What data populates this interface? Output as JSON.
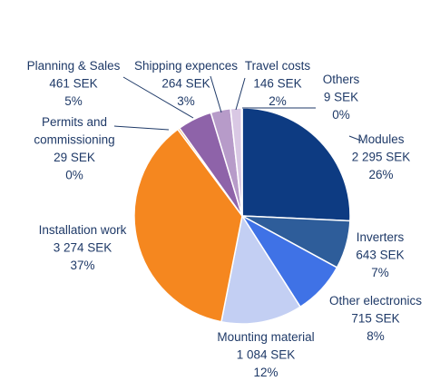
{
  "chart_data": {
    "type": "pie",
    "currency": "SEK",
    "slices": [
      {
        "name": "Modules",
        "value": 2295,
        "value_label": "2 295 SEK",
        "percent_label": "26%",
        "color": "#0d3b82"
      },
      {
        "name": "Inverters",
        "value": 643,
        "value_label": "643 SEK",
        "percent_label": "7%",
        "color": "#2e5d9a"
      },
      {
        "name": "Other electronics",
        "value": 715,
        "value_label": "715 SEK",
        "percent_label": "8%",
        "color": "#3f72e6"
      },
      {
        "name": "Mounting material",
        "value": 1084,
        "value_label": "1 084 SEK",
        "percent_label": "12%",
        "color": "#c3cff3"
      },
      {
        "name": "Installation work",
        "value": 3274,
        "value_label": "3 274 SEK",
        "percent_label": "37%",
        "color": "#f5871f"
      },
      {
        "name": "Permits and commissioning",
        "name_lines": [
          "Permits and",
          "commissioning"
        ],
        "value": 29,
        "value_label": "29 SEK",
        "percent_label": "0%",
        "color": "#f6b16a"
      },
      {
        "name": "Planning & Sales",
        "value": 461,
        "value_label": "461 SEK",
        "percent_label": "5%",
        "color": "#8e63a9"
      },
      {
        "name": "Shipping expences",
        "value": 264,
        "value_label": "264 SEK",
        "percent_label": "3%",
        "color": "#b79bc9"
      },
      {
        "name": "Travel costs",
        "value": 146,
        "value_label": "146 SEK",
        "percent_label": "2%",
        "color": "#d9c8e4"
      },
      {
        "name": "Others",
        "value": 9,
        "value_label": "9 SEK",
        "percent_label": "0%",
        "color": "#ece3f2"
      }
    ]
  }
}
